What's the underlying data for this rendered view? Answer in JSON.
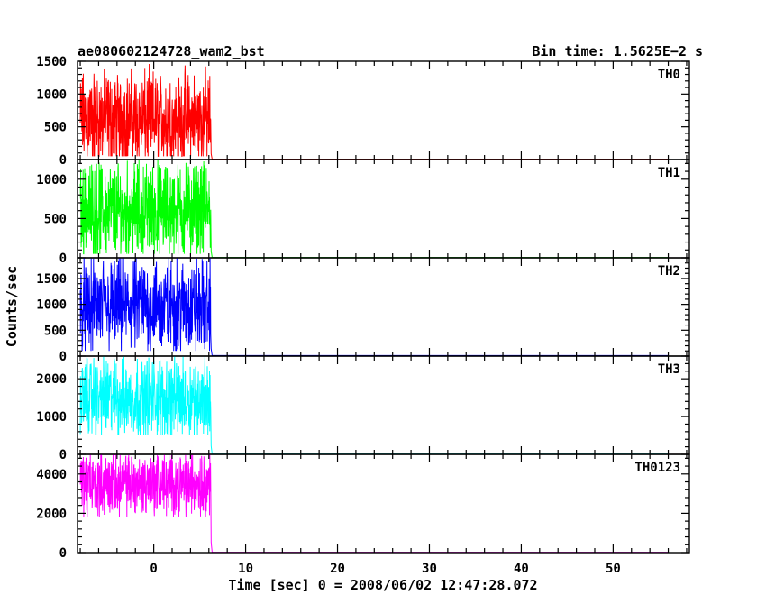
{
  "title_left": "ae080602124728_wam2_bst",
  "title_right": "Bin time: 1.5625E−2 s",
  "xlabel": "Time [sec] 0 = 2008/06/02 12:47:28.072",
  "ylabel": "Counts/sec",
  "chart_data": [
    {
      "type": "line",
      "panel": "TH0",
      "color": "#ff0000",
      "xlim": [
        -8.3,
        58.3
      ],
      "ylim": [
        0,
        1500
      ],
      "yticks": [
        0,
        500,
        1000,
        1500
      ],
      "burst_range": [
        -8,
        6.2
      ],
      "level_range": [
        50,
        1500
      ],
      "mean": 600,
      "background": 5
    },
    {
      "type": "line",
      "panel": "TH1",
      "color": "#00ff00",
      "xlim": [
        -8.3,
        58.3
      ],
      "ylim": [
        0,
        1250
      ],
      "yticks": [
        0,
        500,
        1000
      ],
      "burst_range": [
        -8,
        6.2
      ],
      "level_range": [
        50,
        1250
      ],
      "mean": 600,
      "background": 5
    },
    {
      "type": "line",
      "panel": "TH2",
      "color": "#0000ff",
      "xlim": [
        -8.3,
        58.3
      ],
      "ylim": [
        0,
        1900
      ],
      "yticks": [
        0,
        500,
        1000,
        1500
      ],
      "burst_range": [
        -8,
        6.2
      ],
      "level_range": [
        100,
        1900
      ],
      "mean": 950,
      "background": 10
    },
    {
      "type": "line",
      "panel": "TH3",
      "color": "#00ffff",
      "xlim": [
        -8.3,
        58.3
      ],
      "ylim": [
        0,
        2600
      ],
      "yticks": [
        0,
        1000,
        2000
      ],
      "burst_range": [
        -8,
        6.2
      ],
      "level_range": [
        500,
        2600
      ],
      "mean": 1500,
      "background": 10
    },
    {
      "type": "line",
      "panel": "TH0123",
      "color": "#ff00ff",
      "xlim": [
        -8.3,
        58.3
      ],
      "ylim": [
        0,
        5000
      ],
      "yticks": [
        0,
        2000,
        4000
      ],
      "burst_range": [
        -8,
        6.2
      ],
      "level_range": [
        1800,
        5000
      ],
      "mean": 3500,
      "background": 20
    }
  ],
  "xticks": [
    0,
    10,
    20,
    30,
    40,
    50
  ]
}
